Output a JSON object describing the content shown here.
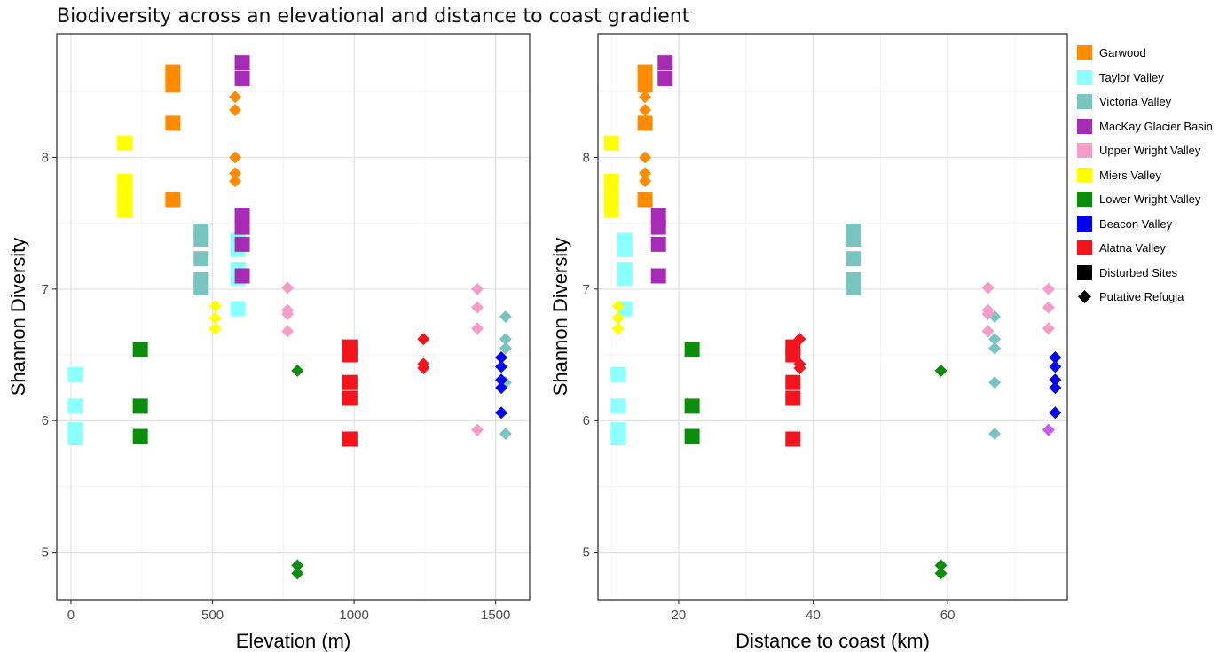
{
  "figure": {
    "title": "Biodiversity across an elevational and distance to coast gradient"
  },
  "legend": {
    "items": [
      {
        "label": "Garwood",
        "color": "#FF8C00",
        "shape": "square"
      },
      {
        "label": "Taylor Valley",
        "color": "#8CFFFF",
        "shape": "square"
      },
      {
        "label": "Victoria Valley",
        "color": "#7AC4C0",
        "shape": "square"
      },
      {
        "label": "MacKay Glacier Basin",
        "color": "#A62CB5",
        "shape": "square"
      },
      {
        "label": "Upper Wright Valley",
        "color": "#F59DC7",
        "shape": "square"
      },
      {
        "label": "Miers Valley",
        "color": "#FFFF00",
        "shape": "square"
      },
      {
        "label": "Lower Wright Valley",
        "color": "#0C8C0C",
        "shape": "square"
      },
      {
        "label": "Beacon Valley",
        "color": "#0000EE",
        "shape": "square"
      },
      {
        "label": "Alatna Valley",
        "color": "#F5141E",
        "shape": "square"
      },
      {
        "label": "Disturbed Sites",
        "color": "#000000",
        "shape": "square"
      },
      {
        "label": "Putative Refugia",
        "color": "#000000",
        "shape": "diamond"
      }
    ]
  },
  "chart_data": [
    {
      "type": "scatter",
      "title": "",
      "xlabel": "Elevation (m)",
      "ylabel": "Shannon Diversity",
      "xlim": [
        -50,
        1620
      ],
      "ylim": [
        4.64,
        8.94
      ],
      "xticks": [
        0,
        500,
        1000,
        1500
      ],
      "yticks": [
        5,
        6,
        7,
        8
      ],
      "grid": true,
      "points": [
        {
          "site": "Garwood",
          "x": 360,
          "y": 8.65,
          "shape": "square"
        },
        {
          "site": "Garwood",
          "x": 360,
          "y": 8.55,
          "shape": "square"
        },
        {
          "site": "Garwood",
          "x": 360,
          "y": 8.26,
          "shape": "square"
        },
        {
          "site": "Garwood",
          "x": 360,
          "y": 7.68,
          "shape": "square"
        },
        {
          "site": "Garwood",
          "x": 580,
          "y": 8.46,
          "shape": "diamond"
        },
        {
          "site": "Garwood",
          "x": 580,
          "y": 8.36,
          "shape": "diamond"
        },
        {
          "site": "Garwood",
          "x": 580,
          "y": 8.0,
          "shape": "diamond"
        },
        {
          "site": "Garwood",
          "x": 580,
          "y": 7.88,
          "shape": "diamond"
        },
        {
          "site": "Garwood",
          "x": 580,
          "y": 7.82,
          "shape": "diamond"
        },
        {
          "site": "Taylor Valley",
          "x": 15,
          "y": 6.35,
          "shape": "square"
        },
        {
          "site": "Taylor Valley",
          "x": 15,
          "y": 6.11,
          "shape": "square"
        },
        {
          "site": "Taylor Valley",
          "x": 15,
          "y": 5.93,
          "shape": "square"
        },
        {
          "site": "Taylor Valley",
          "x": 15,
          "y": 5.87,
          "shape": "square"
        },
        {
          "site": "Taylor Valley",
          "x": 590,
          "y": 7.37,
          "shape": "square"
        },
        {
          "site": "Taylor Valley",
          "x": 590,
          "y": 7.3,
          "shape": "square"
        },
        {
          "site": "Taylor Valley",
          "x": 590,
          "y": 7.15,
          "shape": "square"
        },
        {
          "site": "Taylor Valley",
          "x": 590,
          "y": 7.08,
          "shape": "square"
        },
        {
          "site": "Taylor Valley",
          "x": 590,
          "y": 6.85,
          "shape": "square"
        },
        {
          "site": "Victoria Valley",
          "x": 460,
          "y": 7.44,
          "shape": "square"
        },
        {
          "site": "Victoria Valley",
          "x": 460,
          "y": 7.38,
          "shape": "square"
        },
        {
          "site": "Victoria Valley",
          "x": 460,
          "y": 7.23,
          "shape": "square"
        },
        {
          "site": "Victoria Valley",
          "x": 460,
          "y": 7.07,
          "shape": "square"
        },
        {
          "site": "Victoria Valley",
          "x": 460,
          "y": 7.01,
          "shape": "square"
        },
        {
          "site": "Victoria Valley",
          "x": 1535,
          "y": 6.79,
          "shape": "diamond"
        },
        {
          "site": "Victoria Valley",
          "x": 1535,
          "y": 6.62,
          "shape": "diamond"
        },
        {
          "site": "Victoria Valley",
          "x": 1535,
          "y": 6.55,
          "shape": "diamond"
        },
        {
          "site": "Victoria Valley",
          "x": 1535,
          "y": 6.29,
          "shape": "diamond"
        },
        {
          "site": "Victoria Valley",
          "x": 1535,
          "y": 5.9,
          "shape": "diamond"
        },
        {
          "site": "MacKay Glacier Basin",
          "x": 605,
          "y": 8.72,
          "shape": "square"
        },
        {
          "site": "MacKay Glacier Basin",
          "x": 605,
          "y": 8.6,
          "shape": "square"
        },
        {
          "site": "MacKay Glacier Basin",
          "x": 605,
          "y": 7.56,
          "shape": "square"
        },
        {
          "site": "MacKay Glacier Basin",
          "x": 605,
          "y": 7.47,
          "shape": "square"
        },
        {
          "site": "MacKay Glacier Basin",
          "x": 605,
          "y": 7.34,
          "shape": "square"
        },
        {
          "site": "MacKay Glacier Basin",
          "x": 605,
          "y": 7.1,
          "shape": "square"
        },
        {
          "site": "Upper Wright Valley",
          "x": 765,
          "y": 7.01,
          "shape": "diamond"
        },
        {
          "site": "Upper Wright Valley",
          "x": 765,
          "y": 6.84,
          "shape": "diamond"
        },
        {
          "site": "Upper Wright Valley",
          "x": 765,
          "y": 6.81,
          "shape": "diamond"
        },
        {
          "site": "Upper Wright Valley",
          "x": 765,
          "y": 6.68,
          "shape": "diamond"
        },
        {
          "site": "Upper Wright Valley",
          "x": 1435,
          "y": 7.0,
          "shape": "diamond"
        },
        {
          "site": "Upper Wright Valley",
          "x": 1435,
          "y": 6.86,
          "shape": "diamond"
        },
        {
          "site": "Upper Wright Valley",
          "x": 1435,
          "y": 6.7,
          "shape": "diamond"
        },
        {
          "site": "Upper Wright Valley",
          "x": 1435,
          "y": 5.93,
          "shape": "diamond"
        },
        {
          "site": "Miers Valley",
          "x": 190,
          "y": 8.11,
          "shape": "square"
        },
        {
          "site": "Miers Valley",
          "x": 190,
          "y": 7.82,
          "shape": "square"
        },
        {
          "site": "Miers Valley",
          "x": 190,
          "y": 7.76,
          "shape": "square"
        },
        {
          "site": "Miers Valley",
          "x": 190,
          "y": 7.66,
          "shape": "square"
        },
        {
          "site": "Miers Valley",
          "x": 190,
          "y": 7.6,
          "shape": "square"
        },
        {
          "site": "Miers Valley",
          "x": 510,
          "y": 6.87,
          "shape": "diamond"
        },
        {
          "site": "Miers Valley",
          "x": 510,
          "y": 6.78,
          "shape": "diamond"
        },
        {
          "site": "Miers Valley",
          "x": 510,
          "y": 6.7,
          "shape": "diamond"
        },
        {
          "site": "Lower Wright Valley",
          "x": 245,
          "y": 6.54,
          "shape": "square"
        },
        {
          "site": "Lower Wright Valley",
          "x": 245,
          "y": 6.11,
          "shape": "square"
        },
        {
          "site": "Lower Wright Valley",
          "x": 245,
          "y": 5.88,
          "shape": "square"
        },
        {
          "site": "Lower Wright Valley",
          "x": 800,
          "y": 6.38,
          "shape": "diamond"
        },
        {
          "site": "Lower Wright Valley",
          "x": 800,
          "y": 4.9,
          "shape": "diamond"
        },
        {
          "site": "Lower Wright Valley",
          "x": 800,
          "y": 4.84,
          "shape": "diamond"
        },
        {
          "site": "Beacon Valley",
          "x": 1520,
          "y": 6.48,
          "shape": "diamond"
        },
        {
          "site": "Beacon Valley",
          "x": 1520,
          "y": 6.41,
          "shape": "diamond"
        },
        {
          "site": "Beacon Valley",
          "x": 1520,
          "y": 6.31,
          "shape": "diamond"
        },
        {
          "site": "Beacon Valley",
          "x": 1520,
          "y": 6.25,
          "shape": "diamond"
        },
        {
          "site": "Beacon Valley",
          "x": 1520,
          "y": 6.06,
          "shape": "diamond"
        },
        {
          "site": "Alatna Valley",
          "x": 985,
          "y": 6.56,
          "shape": "square"
        },
        {
          "site": "Alatna Valley",
          "x": 985,
          "y": 6.5,
          "shape": "square"
        },
        {
          "site": "Alatna Valley",
          "x": 985,
          "y": 6.29,
          "shape": "square"
        },
        {
          "site": "Alatna Valley",
          "x": 985,
          "y": 6.17,
          "shape": "square"
        },
        {
          "site": "Alatna Valley",
          "x": 985,
          "y": 5.86,
          "shape": "square"
        },
        {
          "site": "Alatna Valley",
          "x": 1245,
          "y": 6.62,
          "shape": "diamond"
        },
        {
          "site": "Alatna Valley",
          "x": 1245,
          "y": 6.43,
          "shape": "diamond"
        },
        {
          "site": "Alatna Valley",
          "x": 1245,
          "y": 6.4,
          "shape": "diamond"
        }
      ]
    },
    {
      "type": "scatter",
      "title": "",
      "xlabel": "Distance to coast (km)",
      "ylabel": "Shannon Diversity",
      "xlim": [
        8.0,
        77.8
      ],
      "ylim": [
        4.64,
        8.94
      ],
      "xticks": [
        20,
        40,
        60
      ],
      "yticks": [
        5,
        6,
        7,
        8
      ],
      "grid": true,
      "points": [
        {
          "site": "Garwood",
          "x": 15,
          "y": 8.65,
          "shape": "square"
        },
        {
          "site": "Garwood",
          "x": 15,
          "y": 8.55,
          "shape": "square"
        },
        {
          "site": "Garwood",
          "x": 15,
          "y": 8.26,
          "shape": "square"
        },
        {
          "site": "Garwood",
          "x": 15,
          "y": 7.68,
          "shape": "square"
        },
        {
          "site": "Garwood",
          "x": 15,
          "y": 8.46,
          "shape": "diamond"
        },
        {
          "site": "Garwood",
          "x": 15,
          "y": 8.36,
          "shape": "diamond"
        },
        {
          "site": "Garwood",
          "x": 15,
          "y": 8.0,
          "shape": "diamond"
        },
        {
          "site": "Garwood",
          "x": 15,
          "y": 7.88,
          "shape": "diamond"
        },
        {
          "site": "Garwood",
          "x": 15,
          "y": 7.82,
          "shape": "diamond"
        },
        {
          "site": "Taylor Valley",
          "x": 11,
          "y": 6.35,
          "shape": "square"
        },
        {
          "site": "Taylor Valley",
          "x": 11,
          "y": 6.11,
          "shape": "square"
        },
        {
          "site": "Taylor Valley",
          "x": 11,
          "y": 5.93,
          "shape": "square"
        },
        {
          "site": "Taylor Valley",
          "x": 11,
          "y": 5.87,
          "shape": "square"
        },
        {
          "site": "Taylor Valley",
          "x": 12,
          "y": 7.37,
          "shape": "square"
        },
        {
          "site": "Taylor Valley",
          "x": 12,
          "y": 7.3,
          "shape": "square"
        },
        {
          "site": "Taylor Valley",
          "x": 12,
          "y": 7.15,
          "shape": "square"
        },
        {
          "site": "Taylor Valley",
          "x": 12,
          "y": 7.08,
          "shape": "square"
        },
        {
          "site": "Taylor Valley",
          "x": 12,
          "y": 6.85,
          "shape": "square"
        },
        {
          "site": "Victoria Valley",
          "x": 46,
          "y": 7.44,
          "shape": "square"
        },
        {
          "site": "Victoria Valley",
          "x": 46,
          "y": 7.38,
          "shape": "square"
        },
        {
          "site": "Victoria Valley",
          "x": 46,
          "y": 7.23,
          "shape": "square"
        },
        {
          "site": "Victoria Valley",
          "x": 46,
          "y": 7.07,
          "shape": "square"
        },
        {
          "site": "Victoria Valley",
          "x": 46,
          "y": 7.01,
          "shape": "square"
        },
        {
          "site": "Victoria Valley",
          "x": 67,
          "y": 6.79,
          "shape": "diamond"
        },
        {
          "site": "Victoria Valley",
          "x": 67,
          "y": 6.62,
          "shape": "diamond"
        },
        {
          "site": "Victoria Valley",
          "x": 67,
          "y": 6.55,
          "shape": "diamond"
        },
        {
          "site": "Victoria Valley",
          "x": 67,
          "y": 6.29,
          "shape": "diamond"
        },
        {
          "site": "Victoria Valley",
          "x": 67,
          "y": 5.9,
          "shape": "diamond"
        },
        {
          "site": "MacKay Glacier Basin",
          "x": 18,
          "y": 8.72,
          "shape": "square"
        },
        {
          "site": "MacKay Glacier Basin",
          "x": 18,
          "y": 8.6,
          "shape": "square"
        },
        {
          "site": "MacKay Glacier Basin",
          "x": 17,
          "y": 7.56,
          "shape": "square"
        },
        {
          "site": "MacKay Glacier Basin",
          "x": 17,
          "y": 7.47,
          "shape": "square"
        },
        {
          "site": "MacKay Glacier Basin",
          "x": 17,
          "y": 7.34,
          "shape": "square"
        },
        {
          "site": "MacKay Glacier Basin",
          "x": 17,
          "y": 7.1,
          "shape": "square"
        },
        {
          "site": "Upper Wright Valley",
          "x": 66,
          "y": 7.01,
          "shape": "diamond"
        },
        {
          "site": "Upper Wright Valley",
          "x": 66,
          "y": 6.84,
          "shape": "diamond"
        },
        {
          "site": "Upper Wright Valley",
          "x": 66,
          "y": 6.81,
          "shape": "diamond"
        },
        {
          "site": "Upper Wright Valley",
          "x": 66,
          "y": 6.68,
          "shape": "diamond"
        },
        {
          "site": "Upper Wright Valley",
          "x": 75,
          "y": 7.0,
          "shape": "diamond"
        },
        {
          "site": "Upper Wright Valley",
          "x": 75,
          "y": 6.86,
          "shape": "diamond"
        },
        {
          "site": "Upper Wright Valley",
          "x": 75,
          "y": 6.7,
          "shape": "diamond"
        },
        {
          "site": "MacKay Glacier Basin",
          "x": 75,
          "y": 5.93,
          "shape": "diamond",
          "color": "#C35CF0"
        },
        {
          "site": "Miers Valley",
          "x": 10,
          "y": 8.11,
          "shape": "square"
        },
        {
          "site": "Miers Valley",
          "x": 10,
          "y": 7.82,
          "shape": "square"
        },
        {
          "site": "Miers Valley",
          "x": 10,
          "y": 7.76,
          "shape": "square"
        },
        {
          "site": "Miers Valley",
          "x": 10,
          "y": 7.66,
          "shape": "square"
        },
        {
          "site": "Miers Valley",
          "x": 10,
          "y": 7.6,
          "shape": "square"
        },
        {
          "site": "Miers Valley",
          "x": 11,
          "y": 6.87,
          "shape": "diamond"
        },
        {
          "site": "Miers Valley",
          "x": 11,
          "y": 6.78,
          "shape": "diamond"
        },
        {
          "site": "Miers Valley",
          "x": 11,
          "y": 6.7,
          "shape": "diamond"
        },
        {
          "site": "Lower Wright Valley",
          "x": 22,
          "y": 6.54,
          "shape": "square"
        },
        {
          "site": "Lower Wright Valley",
          "x": 22,
          "y": 6.11,
          "shape": "square"
        },
        {
          "site": "Lower Wright Valley",
          "x": 22,
          "y": 5.88,
          "shape": "square"
        },
        {
          "site": "Lower Wright Valley",
          "x": 59,
          "y": 6.38,
          "shape": "diamond"
        },
        {
          "site": "Lower Wright Valley",
          "x": 59,
          "y": 4.9,
          "shape": "diamond"
        },
        {
          "site": "Lower Wright Valley",
          "x": 59,
          "y": 4.84,
          "shape": "diamond"
        },
        {
          "site": "Beacon Valley",
          "x": 76,
          "y": 6.48,
          "shape": "diamond"
        },
        {
          "site": "Beacon Valley",
          "x": 76,
          "y": 6.41,
          "shape": "diamond"
        },
        {
          "site": "Beacon Valley",
          "x": 76,
          "y": 6.31,
          "shape": "diamond"
        },
        {
          "site": "Beacon Valley",
          "x": 76,
          "y": 6.25,
          "shape": "diamond"
        },
        {
          "site": "Beacon Valley",
          "x": 76,
          "y": 6.06,
          "shape": "diamond"
        },
        {
          "site": "Alatna Valley",
          "x": 37,
          "y": 6.56,
          "shape": "square"
        },
        {
          "site": "Alatna Valley",
          "x": 37,
          "y": 6.5,
          "shape": "square"
        },
        {
          "site": "Alatna Valley",
          "x": 37,
          "y": 6.29,
          "shape": "square"
        },
        {
          "site": "Alatna Valley",
          "x": 37,
          "y": 6.17,
          "shape": "square"
        },
        {
          "site": "Alatna Valley",
          "x": 37,
          "y": 5.86,
          "shape": "square"
        },
        {
          "site": "Alatna Valley",
          "x": 38,
          "y": 6.62,
          "shape": "diamond"
        },
        {
          "site": "Alatna Valley",
          "x": 38,
          "y": 6.43,
          "shape": "diamond"
        },
        {
          "site": "Alatna Valley",
          "x": 38,
          "y": 6.4,
          "shape": "diamond"
        }
      ]
    }
  ]
}
